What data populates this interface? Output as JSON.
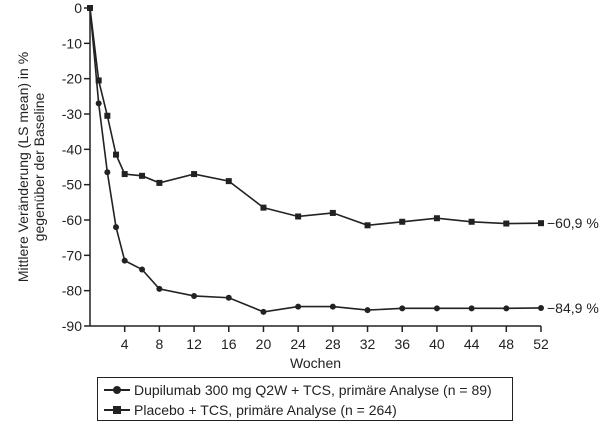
{
  "chart_data": {
    "type": "line",
    "title": "",
    "xlabel": "Wochen",
    "ylabel_line1": "Mittlere Veränderung (LS mean) in %",
    "ylabel_line2": "gegenüber der Baseline",
    "xticks": [
      4,
      8,
      12,
      16,
      20,
      24,
      28,
      32,
      36,
      40,
      44,
      48,
      52
    ],
    "yticks": [
      0,
      -10,
      -20,
      -30,
      -40,
      -50,
      -60,
      -70,
      -80,
      -90
    ],
    "xlim": [
      0,
      52
    ],
    "ylim": [
      -90,
      0
    ],
    "series": [
      {
        "name": "Dupilumab 300 mg Q2W + TCS, primäre Analyse (n = 89)",
        "marker": "circle",
        "x": [
          0,
          1,
          2,
          3,
          4,
          6,
          8,
          12,
          16,
          20,
          24,
          28,
          32,
          36,
          40,
          44,
          48,
          52
        ],
        "y": [
          0,
          -27,
          -46.5,
          -62,
          -71.5,
          -74,
          -79.5,
          -81.5,
          -82,
          -86,
          -84.5,
          -84.5,
          -85.5,
          -85,
          -85,
          -85,
          -85,
          -84.9
        ],
        "end_label": "−84,9 %"
      },
      {
        "name": "Placebo + TCS, primäre Analyse (n = 264)",
        "marker": "square",
        "x": [
          0,
          1,
          2,
          3,
          4,
          6,
          8,
          12,
          16,
          20,
          24,
          28,
          32,
          36,
          40,
          44,
          48,
          52
        ],
        "y": [
          0,
          -20.5,
          -30.5,
          -41.5,
          -47,
          -47.5,
          -49.5,
          -47,
          -49,
          -56.5,
          -59,
          -58,
          -61.5,
          -60.5,
          -59.5,
          -60.5,
          -61,
          -60.9
        ],
        "end_label": "−60,9 %"
      }
    ]
  }
}
